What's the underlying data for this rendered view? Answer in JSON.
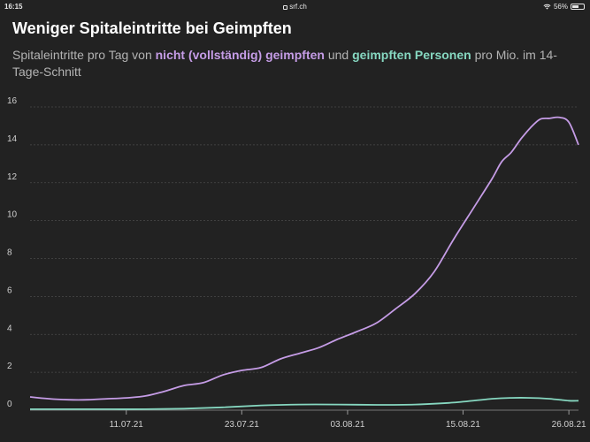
{
  "statusbar": {
    "time": "16:15",
    "url": "srf.ch",
    "battery": "56%",
    "battery_level": 0.56
  },
  "header": {
    "title": "Weniger Spitaleintritte bei Geimpften",
    "subtitle_parts": [
      "Spitaleintritte pro Tag von ",
      "nicht (vollständig) geimpften",
      " und ",
      "geimpften Personen",
      " pro Mio. im 14-Tage-Schnitt"
    ]
  },
  "colors": {
    "unvaccinated": "#c59ce6",
    "vaccinated": "#86d7c0",
    "background": "#222222",
    "grid": "#4a4a4a"
  },
  "chart_data": {
    "type": "line",
    "title": "Weniger Spitaleintritte bei Geimpften",
    "subtitle": "Spitaleintritte pro Tag von nicht (vollständig) geimpften und geimpften Personen pro Mio. im 14-Tage-Schnitt",
    "xlabel": "",
    "ylabel": "",
    "ylim": [
      0,
      16
    ],
    "yticks": [
      "0",
      "2",
      "4",
      "6",
      "8",
      "10",
      "12",
      "14",
      "16"
    ],
    "xlim": [
      "2021-07-01",
      "2021-08-27"
    ],
    "xticks": [
      {
        "date": "2021-07-11",
        "label": "11.07.21"
      },
      {
        "date": "2021-07-23",
        "label": "23.07.21"
      },
      {
        "date": "2021-08-03",
        "label": "03.08.21"
      },
      {
        "date": "2021-08-15",
        "label": "15.08.21"
      },
      {
        "date": "2021-08-26",
        "label": "26.08.21"
      }
    ],
    "grid": true,
    "legend": "none",
    "series": [
      {
        "key": "unvaccinated",
        "x": [
          "2021-07-01",
          "2021-07-03",
          "2021-07-05",
          "2021-07-07",
          "2021-07-09",
          "2021-07-11",
          "2021-07-13",
          "2021-07-15",
          "2021-07-17",
          "2021-07-19",
          "2021-07-21",
          "2021-07-23",
          "2021-07-25",
          "2021-07-27",
          "2021-07-29",
          "2021-07-31",
          "2021-08-02",
          "2021-08-04",
          "2021-08-06",
          "2021-08-08",
          "2021-08-10",
          "2021-08-12",
          "2021-08-14",
          "2021-08-16",
          "2021-08-18",
          "2021-08-19",
          "2021-08-20",
          "2021-08-21",
          "2021-08-22",
          "2021-08-23",
          "2021-08-24",
          "2021-08-25",
          "2021-08-26",
          "2021-08-27"
        ],
        "values": [
          0.7,
          0.6,
          0.55,
          0.55,
          0.6,
          0.65,
          0.75,
          1.0,
          1.3,
          1.45,
          1.85,
          2.1,
          2.25,
          2.7,
          3.0,
          3.3,
          3.75,
          4.15,
          4.6,
          5.35,
          6.15,
          7.3,
          9.0,
          10.6,
          12.2,
          13.1,
          13.6,
          14.3,
          14.9,
          15.35,
          15.4,
          15.45,
          15.2,
          14.0
        ]
      },
      {
        "key": "vaccinated",
        "x": [
          "2021-07-01",
          "2021-07-05",
          "2021-07-09",
          "2021-07-13",
          "2021-07-17",
          "2021-07-21",
          "2021-07-25",
          "2021-07-29",
          "2021-08-02",
          "2021-08-06",
          "2021-08-10",
          "2021-08-14",
          "2021-08-18",
          "2021-08-20",
          "2021-08-22",
          "2021-08-24",
          "2021-08-26",
          "2021-08-27"
        ],
        "values": [
          0.05,
          0.05,
          0.05,
          0.05,
          0.08,
          0.15,
          0.25,
          0.3,
          0.3,
          0.28,
          0.3,
          0.4,
          0.6,
          0.65,
          0.65,
          0.6,
          0.5,
          0.5
        ]
      }
    ]
  }
}
